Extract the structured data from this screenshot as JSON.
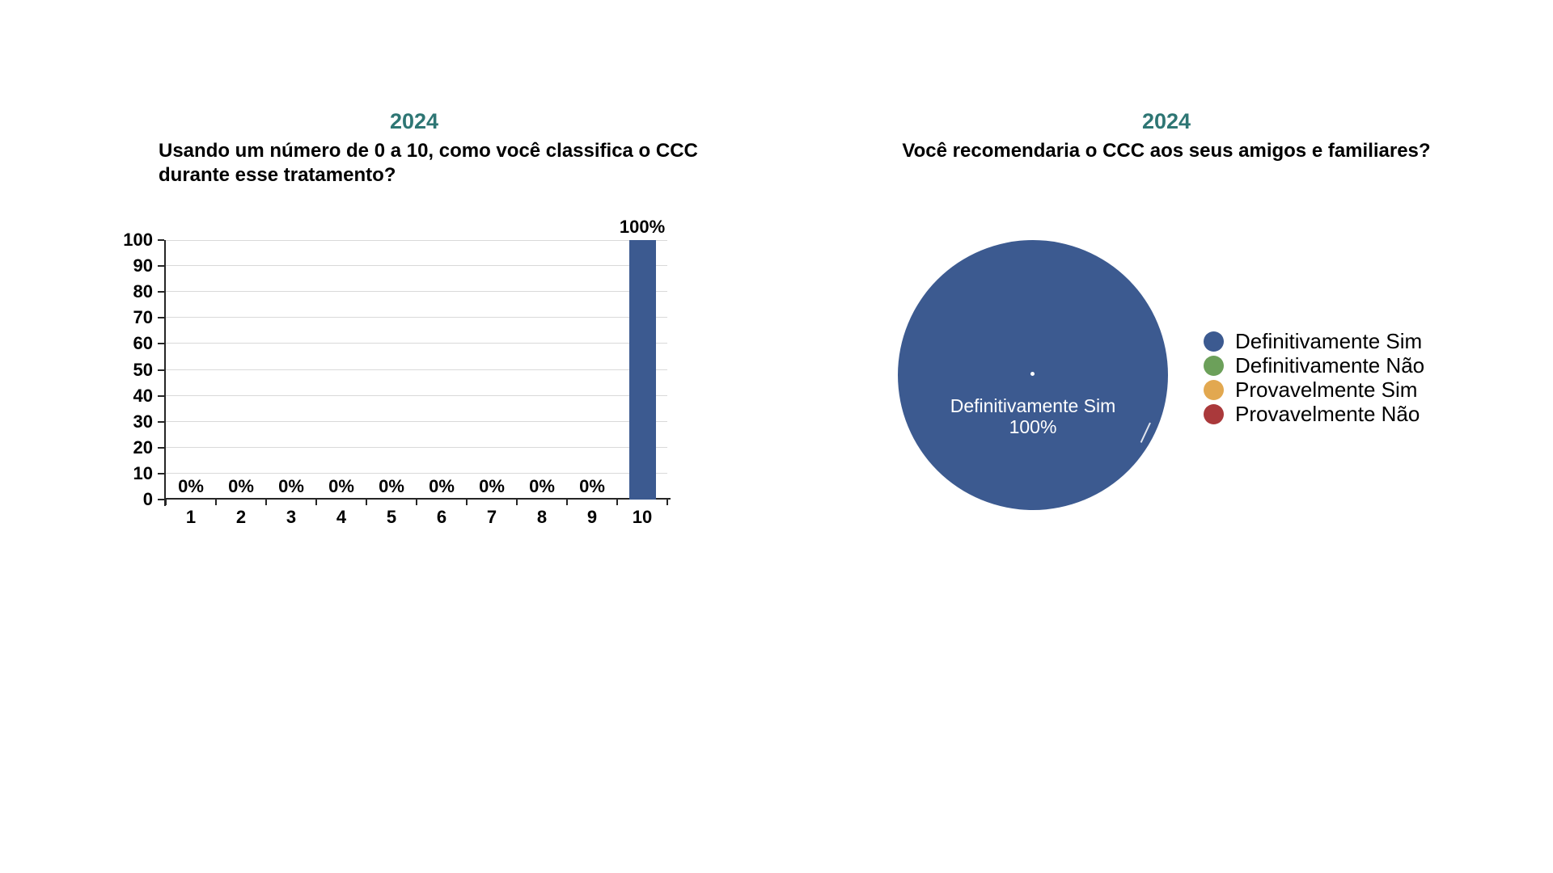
{
  "page": {
    "background": "#FFFFFF"
  },
  "colors": {
    "title_teal": "#2E7674",
    "bar_blue": "#3C5A90",
    "gridline": "#D9D9D9",
    "axis": "#262626",
    "text": "#000000",
    "pie_label_text": "#FFFFFF"
  },
  "chart_data": [
    {
      "type": "bar",
      "title": "2024",
      "subtitle": "Usando um número de 0 a 10, como você classifica o CCC durante esse tratamento?",
      "subtitle_lines": [
        "Usando um número de 0 a 10, como você classifica o CCC",
        "durante esse tratamento?"
      ],
      "categories": [
        "1",
        "2",
        "3",
        "4",
        "5",
        "6",
        "7",
        "8",
        "9",
        "10"
      ],
      "values": [
        0,
        0,
        0,
        0,
        0,
        0,
        0,
        0,
        0,
        100
      ],
      "data_labels": [
        "0%",
        "0%",
        "0%",
        "0%",
        "0%",
        "0%",
        "0%",
        "0%",
        "0%",
        "100%"
      ],
      "xlabel": "",
      "ylabel": "",
      "ylim": [
        0,
        100
      ],
      "yticks": [
        0,
        10,
        20,
        30,
        40,
        50,
        60,
        70,
        80,
        90,
        100
      ],
      "grid": true,
      "bar_color": "#3C5A90",
      "legend_position": "none"
    },
    {
      "type": "pie",
      "title": "2024",
      "subtitle": "Você recomendaria o CCC aos seus amigos e familiares?",
      "slices": [
        {
          "label": "Definitivamente Sim",
          "value": 100,
          "color": "#3C5A90"
        },
        {
          "label": "Definitivamente Não",
          "value": 0,
          "color": "#6CA05A"
        },
        {
          "label": "Provavelmente Sim",
          "value": 0,
          "color": "#E2A850"
        },
        {
          "label": "Provavelmente Não",
          "value": 0,
          "color": "#AA393B"
        }
      ],
      "center_label_lines": [
        "Definitivamente Sim",
        "100%"
      ],
      "legend_position": "right"
    }
  ]
}
